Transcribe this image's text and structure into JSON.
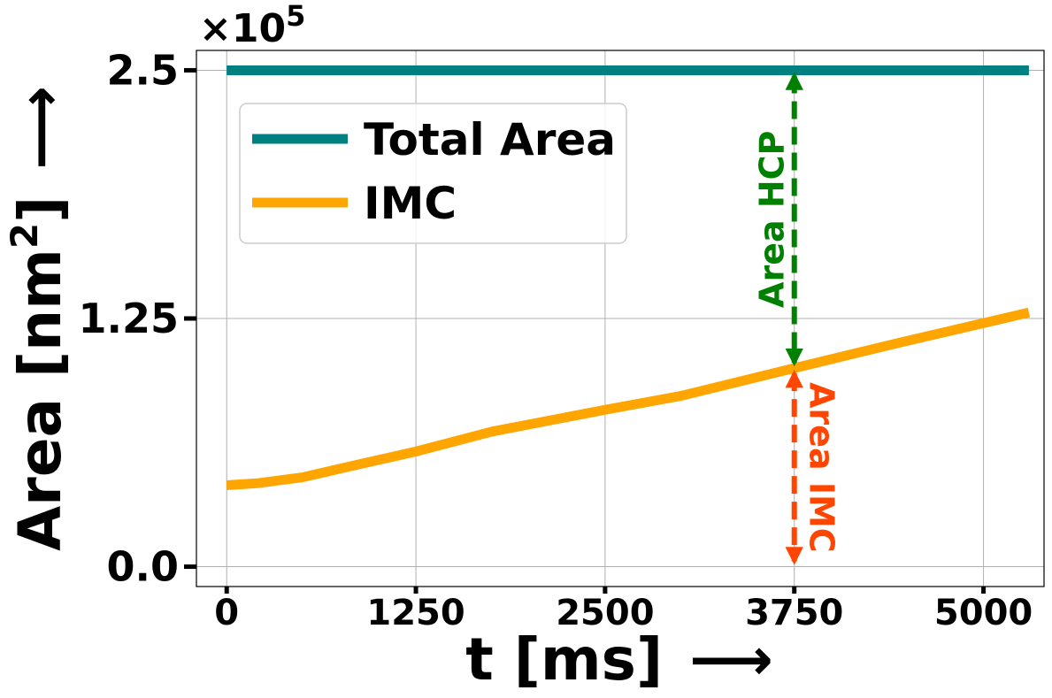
{
  "chart_data": {
    "type": "line",
    "xlabel": "t [ms]",
    "xlabel_arrow": "⟶",
    "ylabel_main": "Area [nm",
    "ylabel_sup": "2",
    "ylabel_end": "]",
    "ylabel_arrow": "⟶",
    "offset_text": "×10",
    "offset_exp": "5",
    "xlim": [
      -200,
      5400
    ],
    "ylim": [
      -0.1,
      2.6
    ],
    "x_ticks": [
      0,
      1250,
      2500,
      3750,
      5000
    ],
    "x_tick_labels": [
      "0",
      "1250",
      "2500",
      "3750",
      "5000"
    ],
    "y_ticks": [
      0,
      1.25,
      2.5
    ],
    "y_tick_labels": [
      "0.0",
      "1.25",
      "2.5"
    ],
    "grid": true,
    "legend_placement": "upper-left",
    "series": [
      {
        "name": "Total Area",
        "color": "#008080",
        "x": [
          0,
          5300
        ],
        "y": [
          2.5,
          2.5
        ]
      },
      {
        "name": "IMC",
        "color": "#FFA500",
        "x": [
          0,
          200,
          500,
          900,
          1250,
          1750,
          2500,
          3000,
          3750,
          4400,
          5300
        ],
        "y": [
          0.41,
          0.42,
          0.45,
          0.52,
          0.58,
          0.68,
          0.79,
          0.86,
          1.0,
          1.12,
          1.28
        ]
      }
    ],
    "annotations": [
      {
        "label": "Area HCP",
        "color": "#008000",
        "x": 3750,
        "y_from": 2.5,
        "y_to": 1.0
      },
      {
        "label": "Area IMC",
        "color": "#FF4500",
        "x": 3750,
        "y_from": 1.0,
        "y_to": 0.0
      }
    ]
  }
}
